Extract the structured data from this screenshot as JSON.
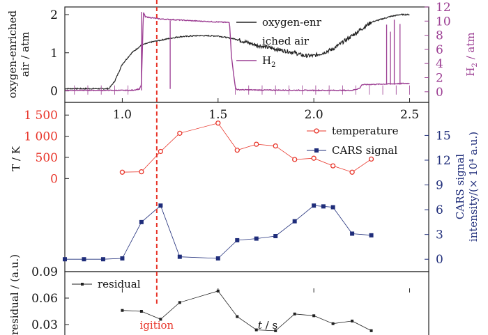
{
  "colors": {
    "oxygen": "#222222",
    "h2": "#9c3e93",
    "temperature": "#e8352a",
    "cars": "#1f2d7a",
    "residual": "#222222",
    "ignition": "#e8352a"
  },
  "chart_data": [
    {
      "type": "line",
      "panel": "top",
      "ylabel": "oxygen-enriched air / atm",
      "ylabel_lines": [
        "oxygen-enriched",
        "air / atm"
      ],
      "ylim": [
        -0.3,
        2.2
      ],
      "yticks": [
        0,
        1,
        2
      ],
      "ylabel2": "H₂ / atm",
      "ylabel2_main": "H",
      "ylabel2_sub": "2",
      "ylabel2_tail": " / atm",
      "ylim2": [
        -1.5,
        12
      ],
      "yticks2": [
        0,
        2,
        4,
        6,
        8,
        10,
        12
      ],
      "legend": [
        "oxygen-enriched air",
        "H₂"
      ],
      "legend_oxygen_lines": [
        "oxygen-enr",
        "iched air"
      ],
      "legend_h2_main": "H",
      "legend_h2_sub": "2",
      "series": [
        {
          "name": "oxygen-enriched air",
          "axis": "left",
          "x": [
            0.7,
            0.93,
            0.96,
            1.0,
            1.05,
            1.1,
            1.15,
            1.2,
            1.25,
            1.3,
            1.4,
            1.5,
            1.6,
            1.7,
            1.8,
            1.9,
            1.95,
            2.0,
            2.05,
            2.1,
            2.2,
            2.3,
            2.4,
            2.45,
            2.5
          ],
          "y": [
            0.06,
            0.06,
            0.25,
            0.7,
            1.0,
            1.2,
            1.28,
            1.33,
            1.38,
            1.42,
            1.45,
            1.44,
            1.35,
            1.2,
            1.1,
            1.0,
            0.92,
            0.92,
            1.0,
            1.1,
            1.45,
            1.8,
            1.95,
            2.0,
            2.0
          ]
        },
        {
          "name": "H₂",
          "axis": "right",
          "x": [
            0.7,
            1.05,
            1.09,
            1.1,
            1.11,
            1.12,
            1.2,
            1.4,
            1.56,
            1.57,
            1.59,
            1.6,
            1.7,
            2.0,
            2.2,
            2.24,
            2.25,
            2.5
          ],
          "y": [
            0.2,
            0.2,
            0.4,
            1.0,
            11.3,
            10.6,
            10.3,
            10.0,
            9.8,
            5.0,
            0.6,
            0.3,
            0.25,
            0.2,
            0.2,
            0.5,
            1.0,
            1.2
          ]
        }
      ]
    },
    {
      "type": "line",
      "panel": "middle",
      "ylabel": "T / K",
      "ylim": [
        -2200,
        1800
      ],
      "yticks": [
        0,
        500,
        1000,
        1500
      ],
      "ytick_labels": [
        "0",
        "500",
        "1 000",
        "1 500"
      ],
      "ylabel2": "CARS signal intensity/(×10⁴ a.u.)",
      "ylabel2_lines": [
        "CARS signal",
        "intensity/(× 10⁴ a.u.)"
      ],
      "ylim2": [
        -1.5,
        19
      ],
      "yticks2": [
        0,
        3,
        6,
        9,
        12,
        15
      ],
      "legend": [
        "temperature",
        "CARS signal"
      ],
      "series": [
        {
          "name": "temperature",
          "axis": "left",
          "x": [
            1.0,
            1.1,
            1.2,
            1.3,
            1.5,
            1.6,
            1.7,
            1.8,
            1.9,
            2.0,
            2.1,
            2.2,
            2.3
          ],
          "y": [
            150,
            160,
            640,
            1070,
            1310,
            670,
            810,
            770,
            450,
            480,
            300,
            150,
            460
          ]
        },
        {
          "name": "CARS signal",
          "axis": "right",
          "x": [
            0.7,
            0.8,
            0.9,
            1.0,
            1.1,
            1.2,
            1.3,
            1.5,
            1.6,
            1.7,
            1.8,
            1.9,
            2.0,
            2.05,
            2.1,
            2.2,
            2.3
          ],
          "y": [
            0,
            0,
            0,
            0.1,
            4.5,
            6.5,
            0.3,
            0.1,
            2.3,
            2.5,
            2.8,
            4.6,
            6.5,
            6.4,
            6.3,
            3.1,
            2.9
          ]
        }
      ]
    },
    {
      "type": "line",
      "panel": "bottom",
      "ylabel": "residual / (a.u.)",
      "ylim": [
        0.015,
        0.09
      ],
      "yticks": [
        0.03,
        0.06,
        0.09
      ],
      "xlabel": "t / s",
      "xlabel_main": "t",
      "xlabel_tail": " / s",
      "xlim": [
        0.7,
        2.6
      ],
      "xticks": [
        1.0,
        1.5,
        2.0,
        2.5
      ],
      "legend": [
        "residual"
      ],
      "series": [
        {
          "name": "residual",
          "x": [
            1.0,
            1.1,
            1.2,
            1.3,
            1.5,
            1.6,
            1.7,
            1.8,
            1.9,
            2.0,
            2.1,
            2.2,
            2.3
          ],
          "y": [
            0.046,
            0.045,
            0.036,
            0.055,
            0.068,
            0.039,
            0.024,
            0.023,
            0.042,
            0.04,
            0.031,
            0.034,
            0.023
          ]
        }
      ]
    }
  ],
  "annotation": {
    "label": "igition",
    "x": 1.18
  }
}
